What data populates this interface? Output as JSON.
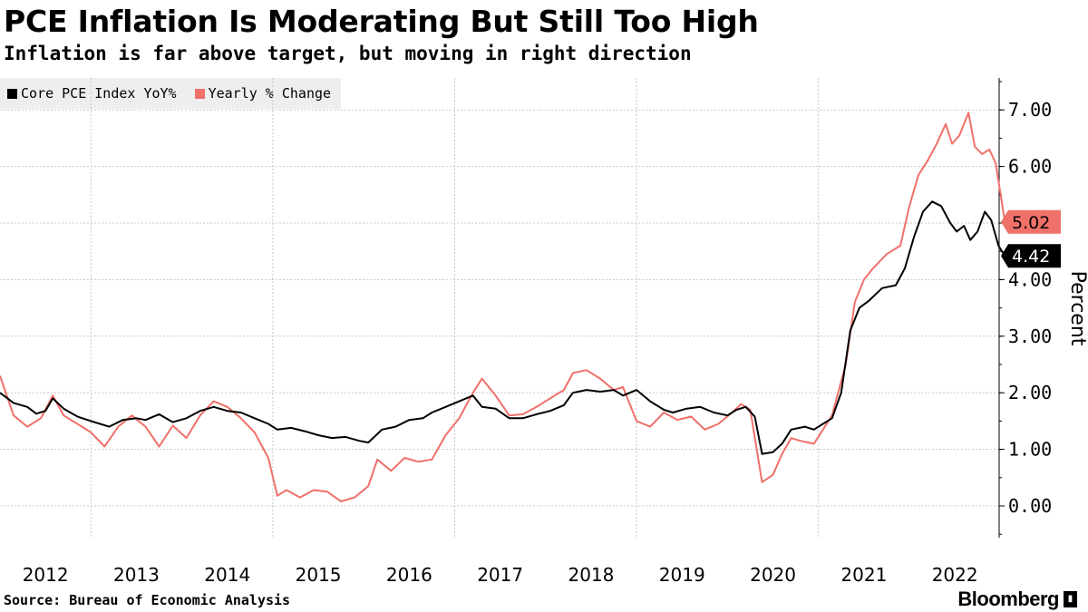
{
  "header": {
    "title": "PCE Inflation Is Moderating But Still Too High",
    "subtitle": "Inflation is far above target, but moving in right direction"
  },
  "footer": {
    "source": "Source: Bureau of Economic Analysis",
    "brand": "Bloomberg",
    "brand_icon": "bloomberg-terminal-icon"
  },
  "colors": {
    "core": "#000000",
    "headline": "#f0706a",
    "grid": "#c8c8c8"
  },
  "chart_data": {
    "type": "line",
    "title": "PCE Inflation Is Moderating But Still Too High",
    "subtitle": "Inflation is far above target, but moving in right direction",
    "xlabel": "",
    "ylabel": "Percent",
    "ylim": [
      -0.55,
      7.6
    ],
    "xlim": [
      2012.0,
      2022.83
    ],
    "y_ticks": [
      0,
      1,
      2,
      3,
      4,
      5,
      6,
      7
    ],
    "y_tick_labels": [
      "0.00",
      "1.00",
      "2.00",
      "3.00",
      "4.00",
      "5.00",
      "6.00",
      "7.00"
    ],
    "x_tick_labels": [
      "2012",
      "2013",
      "2014",
      "2015",
      "2016",
      "2017",
      "2018",
      "2019",
      "2020",
      "2021",
      "2022"
    ],
    "grid": true,
    "legend_position": "top-left",
    "series": [
      {
        "name": "Core PCE Index YoY%",
        "last_value": "4.42",
        "points": [
          [
            2012.0,
            2.0
          ],
          [
            2012.15,
            1.82
          ],
          [
            2012.3,
            1.75
          ],
          [
            2012.4,
            1.63
          ],
          [
            2012.5,
            1.68
          ],
          [
            2012.58,
            1.9
          ],
          [
            2012.7,
            1.72
          ],
          [
            2012.85,
            1.58
          ],
          [
            2013.0,
            1.5
          ],
          [
            2013.1,
            1.45
          ],
          [
            2013.2,
            1.4
          ],
          [
            2013.35,
            1.52
          ],
          [
            2013.5,
            1.55
          ],
          [
            2013.6,
            1.52
          ],
          [
            2013.75,
            1.62
          ],
          [
            2013.9,
            1.48
          ],
          [
            2014.05,
            1.55
          ],
          [
            2014.2,
            1.68
          ],
          [
            2014.35,
            1.75
          ],
          [
            2014.5,
            1.68
          ],
          [
            2014.65,
            1.65
          ],
          [
            2014.8,
            1.55
          ],
          [
            2014.95,
            1.45
          ],
          [
            2015.05,
            1.35
          ],
          [
            2015.2,
            1.38
          ],
          [
            2015.35,
            1.32
          ],
          [
            2015.5,
            1.25
          ],
          [
            2015.65,
            1.2
          ],
          [
            2015.8,
            1.22
          ],
          [
            2015.95,
            1.15
          ],
          [
            2016.05,
            1.12
          ],
          [
            2016.2,
            1.35
          ],
          [
            2016.35,
            1.4
          ],
          [
            2016.5,
            1.52
          ],
          [
            2016.65,
            1.55
          ],
          [
            2016.75,
            1.65
          ],
          [
            2016.9,
            1.75
          ],
          [
            2017.05,
            1.85
          ],
          [
            2017.2,
            1.95
          ],
          [
            2017.3,
            1.75
          ],
          [
            2017.45,
            1.72
          ],
          [
            2017.6,
            1.55
          ],
          [
            2017.75,
            1.55
          ],
          [
            2017.9,
            1.62
          ],
          [
            2018.05,
            1.68
          ],
          [
            2018.2,
            1.78
          ],
          [
            2018.3,
            2.0
          ],
          [
            2018.45,
            2.05
          ],
          [
            2018.6,
            2.02
          ],
          [
            2018.75,
            2.05
          ],
          [
            2018.85,
            1.95
          ],
          [
            2019.0,
            2.05
          ],
          [
            2019.15,
            1.85
          ],
          [
            2019.3,
            1.7
          ],
          [
            2019.4,
            1.65
          ],
          [
            2019.55,
            1.72
          ],
          [
            2019.7,
            1.75
          ],
          [
            2019.85,
            1.65
          ],
          [
            2020.0,
            1.6
          ],
          [
            2020.1,
            1.7
          ],
          [
            2020.2,
            1.75
          ],
          [
            2020.3,
            1.58
          ],
          [
            2020.38,
            0.92
          ],
          [
            2020.5,
            0.95
          ],
          [
            2020.6,
            1.1
          ],
          [
            2020.7,
            1.35
          ],
          [
            2020.85,
            1.4
          ],
          [
            2020.95,
            1.35
          ],
          [
            2021.05,
            1.45
          ],
          [
            2021.15,
            1.55
          ],
          [
            2021.25,
            2.0
          ],
          [
            2021.35,
            3.1
          ],
          [
            2021.45,
            3.5
          ],
          [
            2021.55,
            3.62
          ],
          [
            2021.7,
            3.85
          ],
          [
            2021.85,
            3.9
          ],
          [
            2021.95,
            4.2
          ],
          [
            2022.05,
            4.75
          ],
          [
            2022.15,
            5.2
          ],
          [
            2022.25,
            5.38
          ],
          [
            2022.35,
            5.3
          ],
          [
            2022.45,
            5.0
          ],
          [
            2022.52,
            4.85
          ],
          [
            2022.6,
            4.95
          ],
          [
            2022.67,
            4.7
          ],
          [
            2022.75,
            4.85
          ],
          [
            2022.83,
            5.2
          ],
          [
            2022.9,
            5.05
          ],
          [
            2022.98,
            4.6
          ],
          [
            2023.05,
            4.42
          ]
        ]
      },
      {
        "name": "Yearly % Change",
        "last_value": "5.02",
        "points": [
          [
            2012.0,
            2.3
          ],
          [
            2012.15,
            1.6
          ],
          [
            2012.3,
            1.4
          ],
          [
            2012.45,
            1.55
          ],
          [
            2012.58,
            1.95
          ],
          [
            2012.7,
            1.6
          ],
          [
            2012.85,
            1.45
          ],
          [
            2013.0,
            1.3
          ],
          [
            2013.15,
            1.05
          ],
          [
            2013.3,
            1.4
          ],
          [
            2013.45,
            1.6
          ],
          [
            2013.6,
            1.4
          ],
          [
            2013.75,
            1.05
          ],
          [
            2013.9,
            1.42
          ],
          [
            2014.05,
            1.2
          ],
          [
            2014.2,
            1.6
          ],
          [
            2014.35,
            1.85
          ],
          [
            2014.5,
            1.75
          ],
          [
            2014.65,
            1.55
          ],
          [
            2014.8,
            1.3
          ],
          [
            2014.95,
            0.85
          ],
          [
            2015.05,
            0.18
          ],
          [
            2015.15,
            0.28
          ],
          [
            2015.3,
            0.15
          ],
          [
            2015.45,
            0.28
          ],
          [
            2015.6,
            0.25
          ],
          [
            2015.75,
            0.08
          ],
          [
            2015.9,
            0.15
          ],
          [
            2016.05,
            0.35
          ],
          [
            2016.15,
            0.82
          ],
          [
            2016.3,
            0.62
          ],
          [
            2016.45,
            0.85
          ],
          [
            2016.6,
            0.78
          ],
          [
            2016.75,
            0.82
          ],
          [
            2016.9,
            1.25
          ],
          [
            2017.05,
            1.55
          ],
          [
            2017.2,
            2.0
          ],
          [
            2017.3,
            2.25
          ],
          [
            2017.45,
            1.95
          ],
          [
            2017.6,
            1.6
          ],
          [
            2017.75,
            1.62
          ],
          [
            2017.9,
            1.75
          ],
          [
            2018.05,
            1.9
          ],
          [
            2018.2,
            2.05
          ],
          [
            2018.3,
            2.35
          ],
          [
            2018.45,
            2.4
          ],
          [
            2018.6,
            2.25
          ],
          [
            2018.75,
            2.05
          ],
          [
            2018.85,
            2.1
          ],
          [
            2019.0,
            1.5
          ],
          [
            2019.15,
            1.4
          ],
          [
            2019.3,
            1.65
          ],
          [
            2019.45,
            1.52
          ],
          [
            2019.6,
            1.58
          ],
          [
            2019.75,
            1.35
          ],
          [
            2019.9,
            1.45
          ],
          [
            2020.05,
            1.65
          ],
          [
            2020.15,
            1.8
          ],
          [
            2020.25,
            1.7
          ],
          [
            2020.38,
            0.42
          ],
          [
            2020.5,
            0.55
          ],
          [
            2020.6,
            0.92
          ],
          [
            2020.7,
            1.2
          ],
          [
            2020.8,
            1.15
          ],
          [
            2020.95,
            1.1
          ],
          [
            2021.05,
            1.35
          ],
          [
            2021.15,
            1.6
          ],
          [
            2021.3,
            2.5
          ],
          [
            2021.4,
            3.6
          ],
          [
            2021.5,
            4.0
          ],
          [
            2021.6,
            4.2
          ],
          [
            2021.75,
            4.45
          ],
          [
            2021.9,
            4.6
          ],
          [
            2022.0,
            5.3
          ],
          [
            2022.1,
            5.85
          ],
          [
            2022.2,
            6.1
          ],
          [
            2022.3,
            6.4
          ],
          [
            2022.4,
            6.75
          ],
          [
            2022.47,
            6.4
          ],
          [
            2022.55,
            6.55
          ],
          [
            2022.65,
            6.95
          ],
          [
            2022.72,
            6.35
          ],
          [
            2022.8,
            6.22
          ],
          [
            2022.88,
            6.3
          ],
          [
            2022.95,
            6.05
          ],
          [
            2023.05,
            5.02
          ]
        ]
      }
    ]
  }
}
